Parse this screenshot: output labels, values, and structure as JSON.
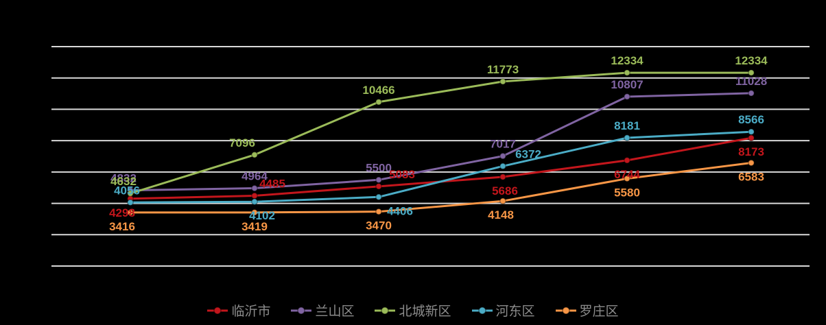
{
  "chart_data": {
    "type": "line",
    "title": "",
    "x_tick_labels": [],
    "x_points": 6,
    "ylim": [
      0,
      14000
    ],
    "gridline_step": 2000,
    "grid": true,
    "legend_position": "bottom",
    "background_color": "#000000",
    "grid_color": "#d9d9d9",
    "legend_text_color": "#8c8c8c",
    "series": [
      {
        "name": "临沂市",
        "color": "#c3161c",
        "values": [
          4298,
          4485,
          5083,
          5686,
          6744,
          8173
        ],
        "label_pos": [
          "below",
          "above",
          "above",
          "below",
          "below",
          "below"
        ],
        "label_dx": [
          -12,
          26,
          34,
          3,
          0,
          0
        ]
      },
      {
        "name": "兰山区",
        "color": "#8064a2",
        "values": [
          4832,
          4964,
          5500,
          7017,
          10807,
          11028
        ],
        "label_pos": [
          "above",
          "above",
          "above",
          "above",
          "above",
          "above"
        ],
        "label_dx": [
          -10,
          0,
          0,
          0,
          0,
          0
        ]
      },
      {
        "name": "北城新区",
        "color": "#9bbb59",
        "values": [
          4632,
          7096,
          10466,
          11773,
          12334,
          12334
        ],
        "label_pos": [
          "above",
          "above",
          "above",
          "above",
          "above",
          "above"
        ],
        "label_dx": [
          -10,
          -18,
          0,
          0,
          0,
          0
        ]
      },
      {
        "name": "河东区",
        "color": "#4bacc6",
        "values": [
          4056,
          4102,
          4406,
          6372,
          8181,
          8566
        ],
        "label_pos": [
          "above",
          "below",
          "below",
          "above",
          "above",
          "above"
        ],
        "label_dx": [
          -5,
          11,
          31,
          37,
          0,
          0
        ]
      },
      {
        "name": "罗庄区",
        "color": "#f79646",
        "values": [
          3416,
          3419,
          3470,
          4148,
          5580,
          6583
        ],
        "label_pos": [
          "below",
          "below",
          "below",
          "below",
          "below",
          "below"
        ],
        "label_dx": [
          -12,
          0,
          0,
          -3,
          0,
          0
        ]
      }
    ]
  }
}
